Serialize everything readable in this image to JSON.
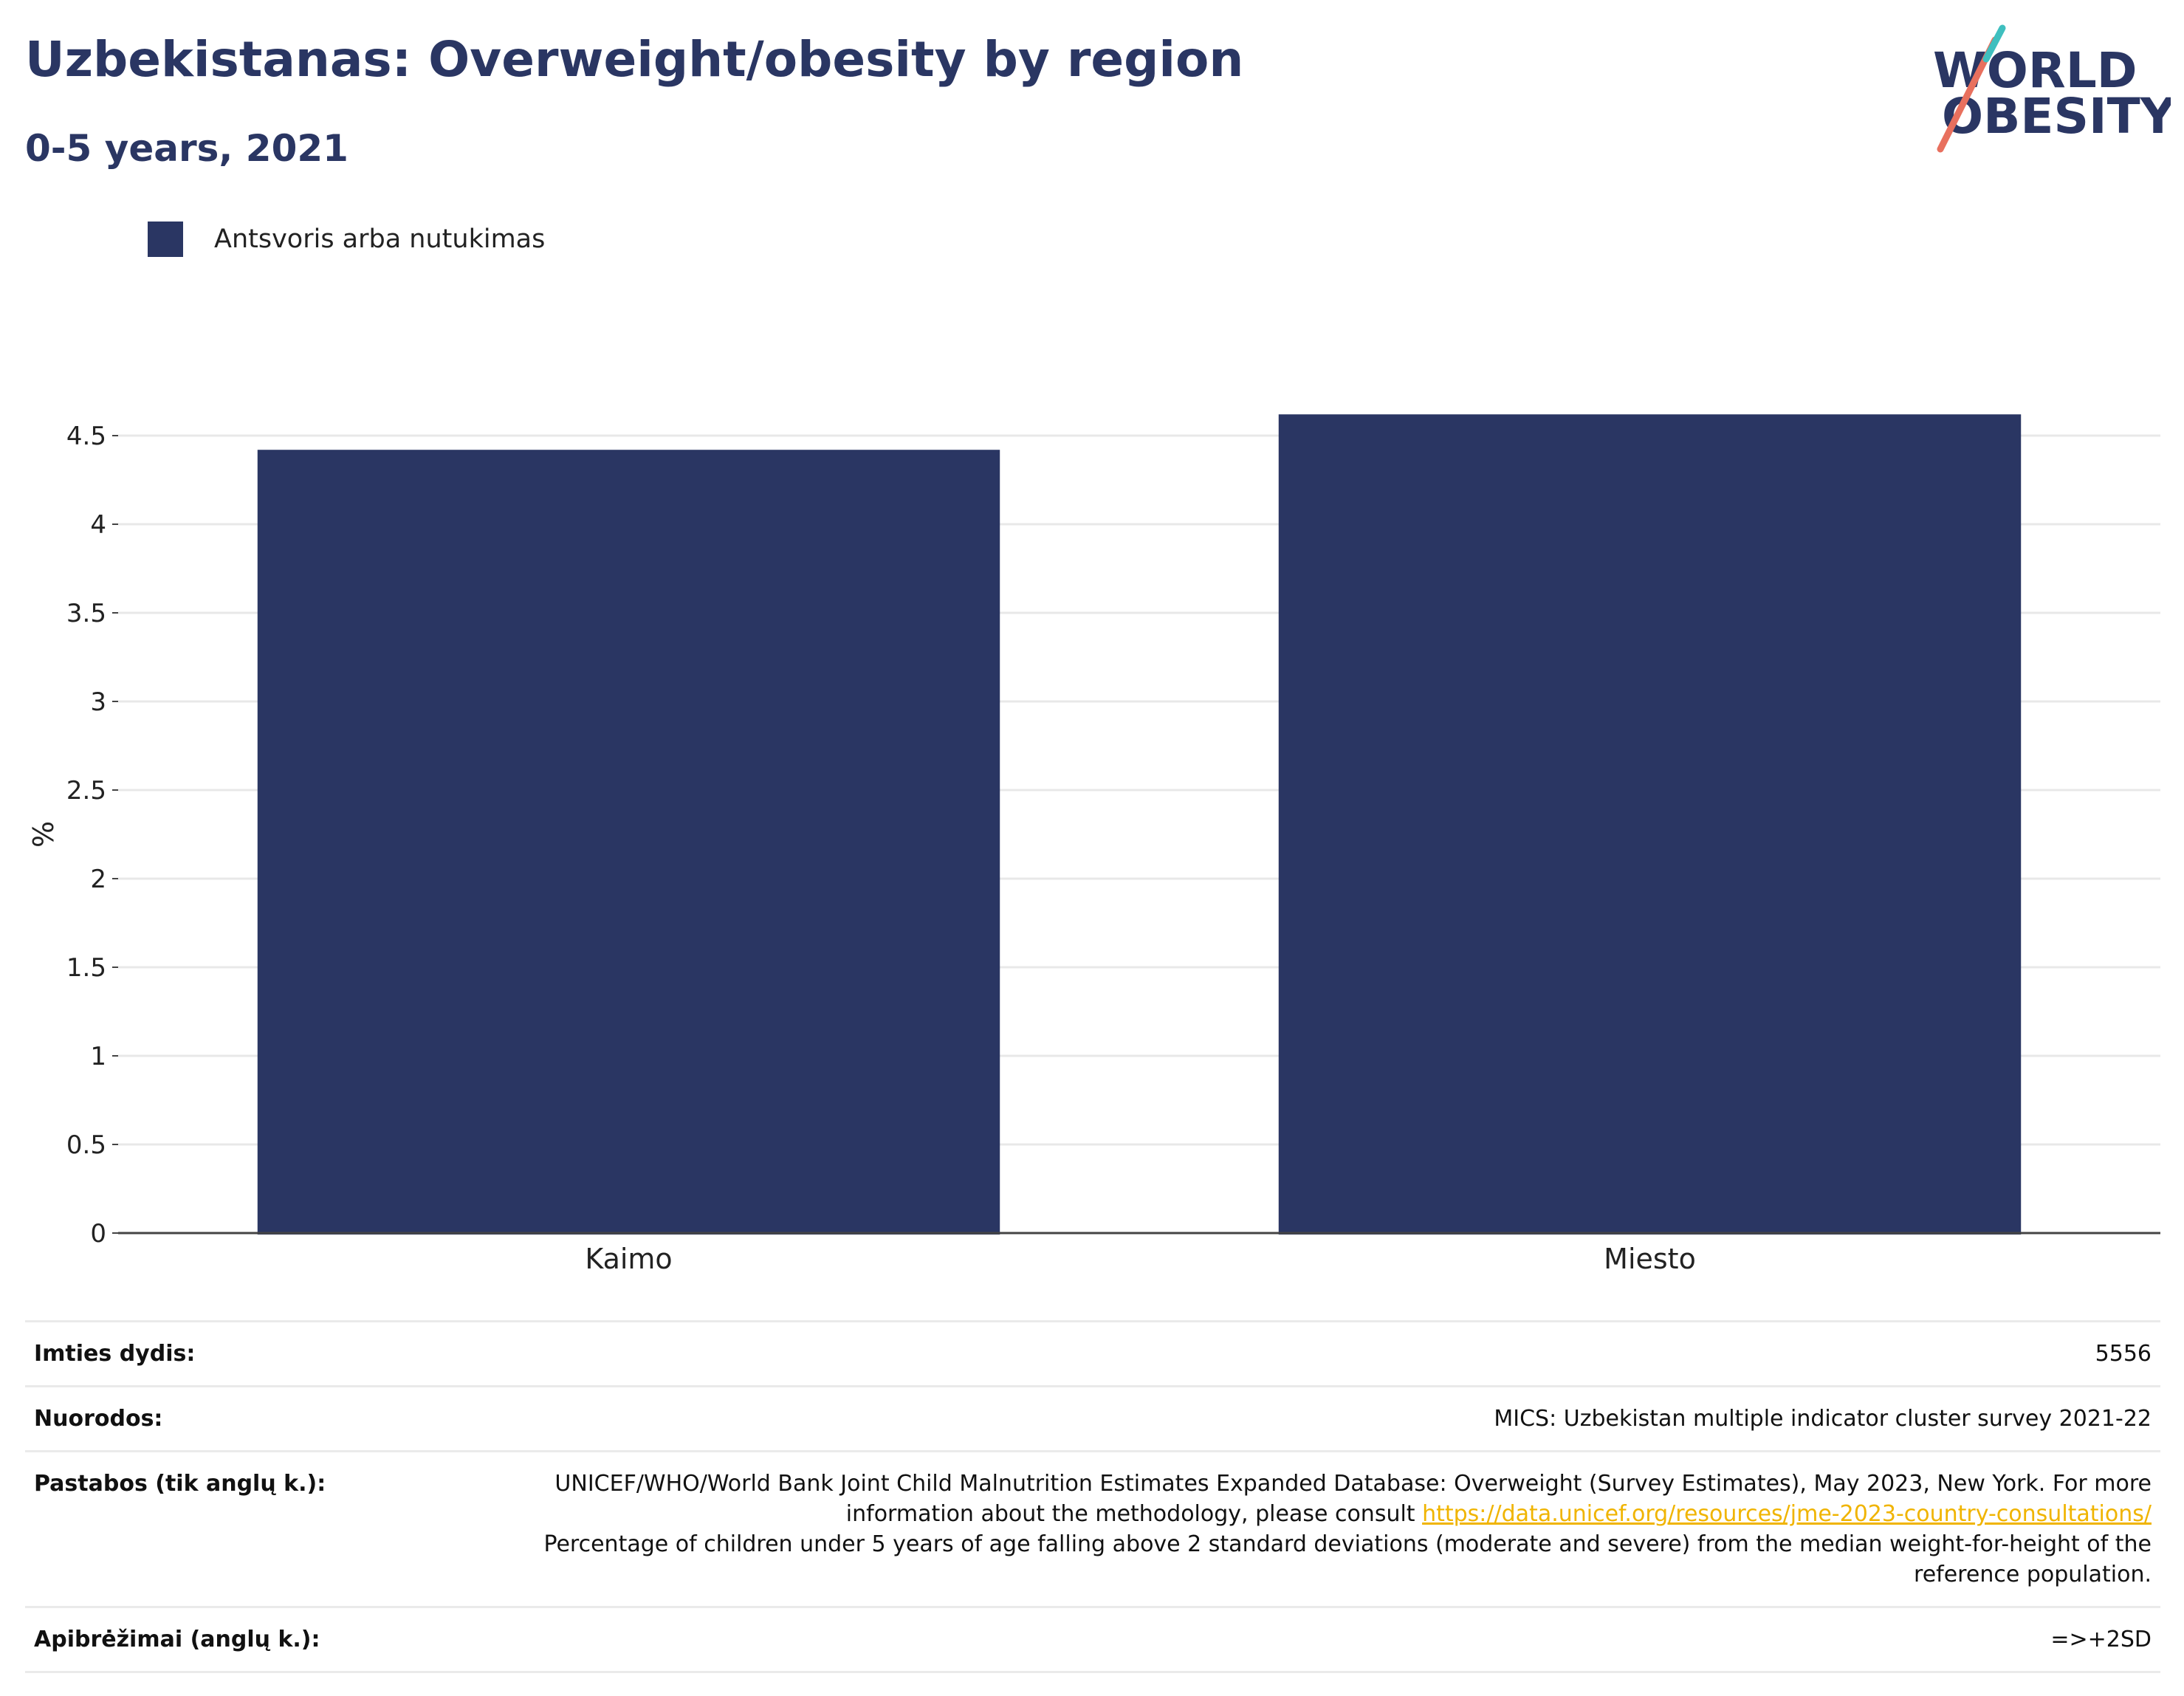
{
  "title": "Uzbekistanas: Overweight/obesity by region",
  "subtitle": "0-5 years, 2021",
  "logo": {
    "line1": "WORLD",
    "line2": "OBESITY"
  },
  "legend": {
    "label": "Antsvoris arba nutukimas",
    "color": "#2a3663"
  },
  "chart_data": {
    "type": "bar",
    "categories": [
      "Kaimo",
      "Miesto"
    ],
    "series": [
      {
        "name": "Antsvoris arba nutukimas",
        "values": [
          4.42,
          4.62
        ]
      }
    ],
    "ylabel": "%",
    "ylim": [
      0,
      4.5
    ],
    "yticks": [
      "0",
      "0.5",
      "1",
      "1.5",
      "2",
      "2.5",
      "3",
      "3.5",
      "4",
      "4.5"
    ],
    "grid": true,
    "bar_color": "#2a3663"
  },
  "info": {
    "sample_label": "Imties dydis:",
    "sample_value": "5556",
    "refs_label": "Nuorodos:",
    "refs_value": "MICS: Uzbekistan multiple indicator cluster survey 2021-22",
    "notes_label": "Pastabos (tik anglų k.):",
    "notes_part1": "UNICEF/WHO/World Bank Joint Child Malnutrition Estimates Expanded Database: Overweight (Survey Estimates), May 2023, New York. For more information about the methodology, please consult ",
    "notes_link": "https://data.unicef.org/resources/jme-2023-country-consultations/",
    "notes_part2": "Percentage of children under 5 years of age falling above 2 standard deviations (moderate and severe) from the median weight-for-height of the reference population.",
    "defs_label": "Apibrėžimai (anglų k.):",
    "defs_value": "=>+2SD"
  }
}
